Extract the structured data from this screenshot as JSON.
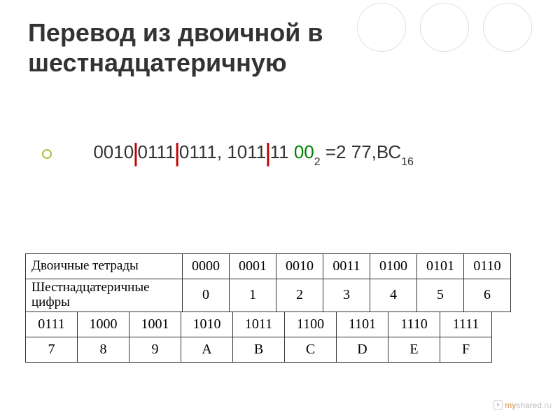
{
  "title": "Перевод из двоичной в шестнадцатеричную",
  "expression": {
    "seg1": "0010",
    "seg2": "0111",
    "seg3": "0111, 1011",
    "seg4a": "11 ",
    "seg4b": "00",
    "sub1": "2",
    "mid": " =2 77,ВС",
    "sub2": "16"
  },
  "table1": {
    "row1_label": "Двоичные тетрады",
    "row1": [
      "0000",
      "0001",
      "0010",
      "0011",
      "0100",
      "0101",
      "0110"
    ],
    "row2_label": "Шестнадцатеричные цифры",
    "row2": [
      "0",
      "1",
      "2",
      "3",
      "4",
      "5",
      "6"
    ]
  },
  "table2": {
    "row1": [
      "0111",
      "1000",
      "1001",
      "1010",
      "1011",
      "1100",
      "1101",
      "1110",
      "1111"
    ],
    "row2": [
      "7",
      "8",
      "9",
      "A",
      "B",
      "C",
      "D",
      "E",
      "F"
    ]
  },
  "watermark": {
    "my": "my",
    "shared": "shared",
    "ru": ".ru"
  },
  "colors": {
    "title": "#333333",
    "bullet_border": "#b0c040",
    "red": "#c00000",
    "green": "#008000",
    "border": "#333333",
    "circle": "#e0e0e0"
  }
}
